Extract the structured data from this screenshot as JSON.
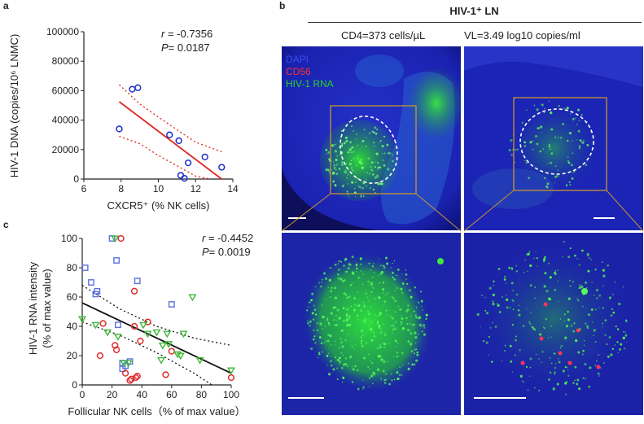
{
  "panels": {
    "a": "a",
    "b": "b",
    "c": "c"
  },
  "panel_b": {
    "title": "HIV-1⁺ LN",
    "subtitle_cd4": "CD4=373 cells/µL",
    "subtitle_vl": "VL=3.49 log10 copies/ml",
    "legend": [
      {
        "label": "DAPI",
        "color": "#3b4cf0"
      },
      {
        "label": "CD56",
        "color": "#ff3030"
      },
      {
        "label": "HIV-1 RNA",
        "color": "#26d426"
      }
    ],
    "colors": {
      "tissue": "#1a1fb8",
      "box": "#c8962e",
      "signal": "#22e022",
      "cd56": "#ff3355"
    }
  },
  "chart_data": [
    {
      "type": "scatter",
      "title": "",
      "xlabel": "CXCR5⁺ (% NK cells)",
      "ylabel": "HIV-1 DNA (copies/10⁶ LNMC)",
      "xlim": [
        6,
        14
      ],
      "ylim": [
        0,
        100000
      ],
      "x_ticks": [
        "6",
        "8",
        "10",
        "12",
        "14"
      ],
      "y_ticks": [
        "0",
        "20000",
        "40000",
        "60000",
        "80000",
        "100000"
      ],
      "stats": {
        "r_label": "r",
        "r_value": "= -0.7356",
        "p_label": "P",
        "p_value": "= 0.0187"
      },
      "series": [
        {
          "marker": "circle",
          "color": "#1c2fd1",
          "points": [
            [
              7.9,
              34000
            ],
            [
              8.6,
              61000
            ],
            [
              8.9,
              62000
            ],
            [
              10.6,
              30000
            ],
            [
              11.1,
              26000
            ],
            [
              11.2,
              2500
            ],
            [
              11.4,
              500
            ],
            [
              11.6,
              11000
            ],
            [
              12.5,
              15000
            ],
            [
              13.4,
              8000
            ]
          ]
        }
      ],
      "fit": {
        "color": "#e3231b",
        "line": [
          [
            7.9,
            52500
          ],
          [
            13.4,
            0
          ]
        ],
        "ci_upper": [
          [
            7.9,
            64000
          ],
          [
            9.0,
            51000
          ],
          [
            10.0,
            42000
          ],
          [
            11.0,
            33500
          ],
          [
            12.0,
            25000
          ],
          [
            13.4,
            18500
          ]
        ],
        "ci_lower": [
          [
            7.9,
            29000
          ],
          [
            9.0,
            24000
          ],
          [
            10.0,
            16000
          ],
          [
            11.0,
            9000
          ],
          [
            12.0,
            2000
          ],
          [
            12.8,
            -3000
          ]
        ]
      }
    },
    {
      "type": "scatter",
      "title": "",
      "xlabel": "Follicular NK cells（% of max value）",
      "ylabel_line1": "HIV-1 RNA intensity",
      "ylabel_line2": "(% of max value)",
      "xlim": [
        0,
        100
      ],
      "ylim": [
        0,
        100
      ],
      "x_ticks": [
        "0",
        "20",
        "40",
        "60",
        "80",
        "100"
      ],
      "y_ticks": [
        "0",
        "20",
        "40",
        "60",
        "80",
        "100"
      ],
      "stats": {
        "r_label": "r",
        "r_value": "= -0.4452",
        "p_label": "P",
        "p_value": "= 0.0019"
      },
      "series": [
        {
          "marker": "square",
          "color": "#5a6fe0",
          "points": [
            [
              2,
              80
            ],
            [
              6,
              70
            ],
            [
              9,
              62
            ],
            [
              10,
              64
            ],
            [
              20,
              100
            ],
            [
              23,
              85
            ],
            [
              24,
              41
            ],
            [
              27,
              15
            ],
            [
              27,
              11
            ],
            [
              29,
              13
            ],
            [
              32,
              16
            ],
            [
              37,
              71
            ],
            [
              60,
              55
            ]
          ]
        },
        {
          "marker": "circle",
          "color": "#e02b2b",
          "points": [
            [
              12,
              20
            ],
            [
              14,
              42
            ],
            [
              22,
              27
            ],
            [
              23,
              24
            ],
            [
              26,
              100
            ],
            [
              29,
              8
            ],
            [
              32,
              3
            ],
            [
              33,
              4
            ],
            [
              35,
              64
            ],
            [
              35,
              40
            ],
            [
              36,
              5
            ],
            [
              37,
              6
            ],
            [
              39,
              30
            ],
            [
              44,
              43
            ],
            [
              56,
              7
            ],
            [
              60,
              23
            ],
            [
              100,
              5
            ]
          ]
        },
        {
          "marker": "triangle",
          "color": "#3db837",
          "points": [
            [
              0,
              45
            ],
            [
              9,
              41
            ],
            [
              17,
              36
            ],
            [
              22,
              100
            ],
            [
              24,
              33
            ],
            [
              28,
              15
            ],
            [
              31,
              15
            ],
            [
              41,
              41
            ],
            [
              44,
              35
            ],
            [
              50,
              36
            ],
            [
              53,
              17
            ],
            [
              54,
              27
            ],
            [
              57,
              35
            ],
            [
              58,
              28
            ],
            [
              64,
              21
            ],
            [
              66,
              20
            ],
            [
              68,
              35
            ],
            [
              74,
              60
            ],
            [
              79,
              17
            ],
            [
              100,
              10
            ]
          ]
        }
      ],
      "fit": {
        "color": "#111111",
        "line": [
          [
            0,
            56
          ],
          [
            100,
            8
          ]
        ],
        "ci_upper": [
          [
            0,
            68
          ],
          [
            25,
            52
          ],
          [
            50,
            40
          ],
          [
            75,
            32
          ],
          [
            100,
            27
          ]
        ],
        "ci_lower": [
          [
            0,
            43
          ],
          [
            25,
            34
          ],
          [
            50,
            22
          ],
          [
            75,
            8
          ],
          [
            87,
            0
          ]
        ]
      }
    }
  ]
}
